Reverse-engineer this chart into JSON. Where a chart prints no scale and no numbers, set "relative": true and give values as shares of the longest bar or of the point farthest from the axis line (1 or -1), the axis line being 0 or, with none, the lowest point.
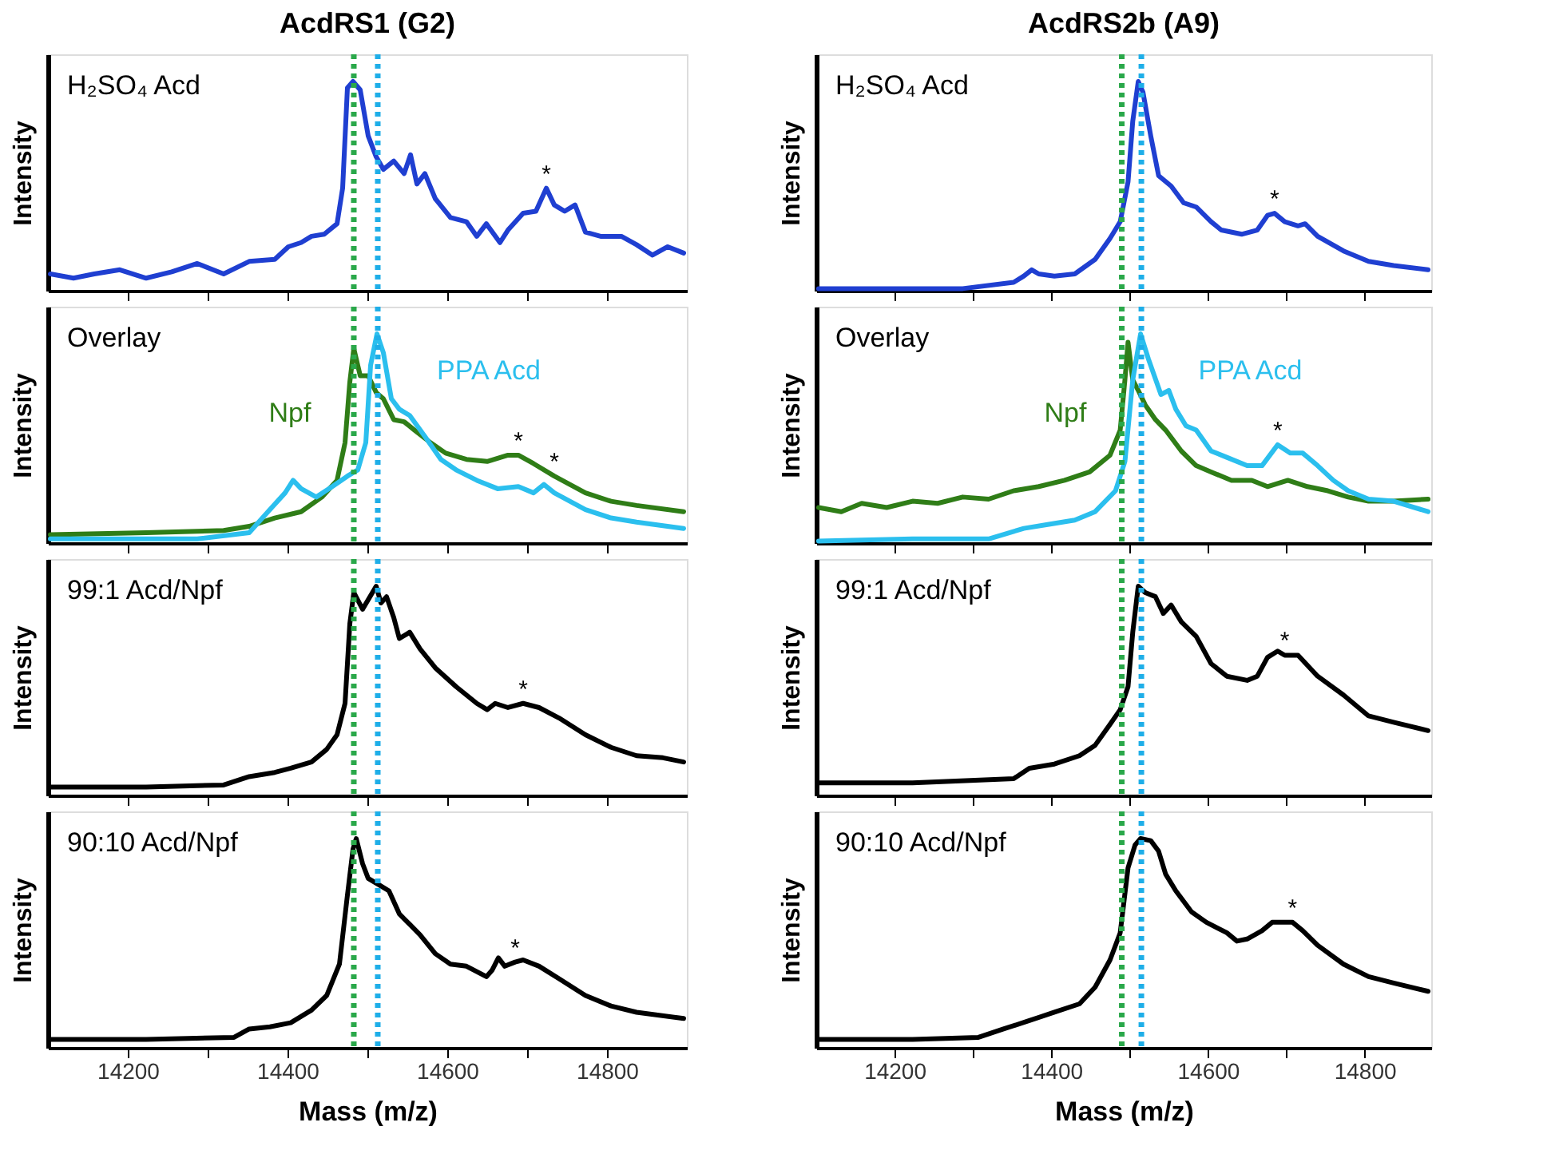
{
  "chart_data": [
    {
      "type": "line",
      "title": "AcdRS1 (G2)",
      "ylabel": "Intensity",
      "relative": true,
      "tick_labels": false,
      "xlim": [
        14100,
        14900
      ],
      "xticks": [
        {
          "value": 14200,
          "label": null
        },
        {
          "value": 14300,
          "label": null
        },
        {
          "value": 14400,
          "label": null
        },
        {
          "value": 14500,
          "label": null
        },
        {
          "value": 14600,
          "label": null
        },
        {
          "value": 14700,
          "label": null
        },
        {
          "value": 14800,
          "label": null
        }
      ],
      "ref_lines": [
        {
          "axis": "x",
          "value": 14483,
          "color": "#2aa84a",
          "line_style": "dotted"
        },
        {
          "axis": "x",
          "value": 14513,
          "color": "#1eaee8",
          "line_style": "dotted"
        }
      ],
      "annotations": [
        "H₂SO₄ Acd",
        {
          "text": "*",
          "x": 14724,
          "y": 0.49
        }
      ],
      "series": [
        {
          "color": "#1f3fd1",
          "x": [
            14103,
            14132,
            14158,
            14190,
            14223,
            14255,
            14287,
            14320,
            14352,
            14384,
            14401,
            14417,
            14430,
            14446,
            14462,
            14469,
            14475,
            14482,
            14491,
            14501,
            14511,
            14520,
            14533,
            14546,
            14554,
            14562,
            14572,
            14585,
            14604,
            14624,
            14637,
            14649,
            14666,
            14676,
            14695,
            14711,
            14724,
            14734,
            14747,
            14760,
            14773,
            14792,
            14818,
            14837,
            14857,
            14876,
            14896
          ],
          "values": [
            0.08,
            0.06,
            0.08,
            0.1,
            0.06,
            0.09,
            0.13,
            0.08,
            0.14,
            0.15,
            0.21,
            0.23,
            0.26,
            0.27,
            0.32,
            0.49,
            0.97,
            1.0,
            0.96,
            0.74,
            0.64,
            0.58,
            0.62,
            0.56,
            0.65,
            0.51,
            0.56,
            0.44,
            0.35,
            0.33,
            0.26,
            0.32,
            0.23,
            0.29,
            0.37,
            0.38,
            0.49,
            0.41,
            0.38,
            0.41,
            0.28,
            0.26,
            0.26,
            0.22,
            0.17,
            0.21,
            0.18
          ]
        }
      ]
    },
    {
      "type": "line",
      "title": "AcdRS2b (A9)",
      "ylabel": "Intensity",
      "relative": true,
      "tick_labels": false,
      "xlim": [
        14100,
        14885
      ],
      "xticks": [
        {
          "value": 14200,
          "label": null
        },
        {
          "value": 14300,
          "label": null
        },
        {
          "value": 14400,
          "label": null
        },
        {
          "value": 14500,
          "label": null
        },
        {
          "value": 14600,
          "label": null
        },
        {
          "value": 14700,
          "label": null
        },
        {
          "value": 14800,
          "label": null
        }
      ],
      "ref_lines": [
        {
          "axis": "x",
          "value": 14490,
          "color": "#2aa84a",
          "line_style": "dotted"
        },
        {
          "axis": "x",
          "value": 14515,
          "color": "#1eaee8",
          "line_style": "dotted"
        }
      ],
      "annotations": [
        "H₂SO₄ Acd",
        {
          "text": "*",
          "x": 14685,
          "y": 0.37
        }
      ],
      "series": [
        {
          "color": "#1f3fd1",
          "x": [
            14103,
            14223,
            14287,
            14352,
            14365,
            14375,
            14384,
            14404,
            14430,
            14456,
            14475,
            14488,
            14498,
            14504,
            14511,
            14517,
            14527,
            14537,
            14553,
            14569,
            14585,
            14604,
            14617,
            14643,
            14663,
            14676,
            14685,
            14698,
            14715,
            14724,
            14740,
            14773,
            14805,
            14837,
            14881
          ],
          "values": [
            0.01,
            0.01,
            0.01,
            0.04,
            0.07,
            0.1,
            0.08,
            0.07,
            0.08,
            0.15,
            0.25,
            0.33,
            0.52,
            0.81,
            1.0,
            0.95,
            0.74,
            0.55,
            0.5,
            0.42,
            0.4,
            0.33,
            0.29,
            0.27,
            0.29,
            0.36,
            0.37,
            0.33,
            0.31,
            0.32,
            0.26,
            0.19,
            0.14,
            0.12,
            0.1
          ]
        }
      ]
    },
    {
      "type": "line",
      "ylabel": "Intensity",
      "relative": true,
      "tick_labels": false,
      "xlim": [
        14100,
        14900
      ],
      "xticks": [
        {
          "value": 14200,
          "label": null
        },
        {
          "value": 14300,
          "label": null
        },
        {
          "value": 14400,
          "label": null
        },
        {
          "value": 14500,
          "label": null
        },
        {
          "value": 14600,
          "label": null
        },
        {
          "value": 14700,
          "label": null
        },
        {
          "value": 14800,
          "label": null
        }
      ],
      "ref_lines": [
        {
          "axis": "x",
          "value": 14483,
          "color": "#2aa84a",
          "line_style": "dotted"
        },
        {
          "axis": "x",
          "value": 14513,
          "color": "#1eaee8",
          "line_style": "dotted"
        }
      ],
      "annotations": [
        "Overlay",
        {
          "text": "*",
          "x": 14689,
          "y": 0.42
        },
        {
          "text": "*",
          "x": 14734,
          "y": 0.32
        }
      ],
      "series": [
        {
          "name": "Npf",
          "color": "#2f7d17",
          "x": [
            14103,
            14223,
            14320,
            14352,
            14384,
            14417,
            14443,
            14462,
            14472,
            14478,
            14483,
            14491,
            14501,
            14511,
            14520,
            14533,
            14546,
            14559,
            14579,
            14598,
            14624,
            14650,
            14676,
            14689,
            14708,
            14734,
            14773,
            14805,
            14837,
            14896
          ],
          "values": [
            0.04,
            0.05,
            0.06,
            0.08,
            0.12,
            0.15,
            0.22,
            0.3,
            0.48,
            0.77,
            0.93,
            0.8,
            0.8,
            0.72,
            0.69,
            0.59,
            0.58,
            0.54,
            0.48,
            0.43,
            0.4,
            0.39,
            0.42,
            0.42,
            0.38,
            0.32,
            0.24,
            0.2,
            0.18,
            0.15
          ]
        },
        {
          "name": "PPA Acd",
          "color": "#2bbfee",
          "x": [
            14103,
            14287,
            14352,
            14378,
            14397,
            14407,
            14417,
            14436,
            14456,
            14475,
            14488,
            14498,
            14504,
            14512,
            14520,
            14530,
            14540,
            14553,
            14572,
            14592,
            14611,
            14637,
            14663,
            14689,
            14708,
            14721,
            14734,
            14773,
            14805,
            14837,
            14896
          ],
          "values": [
            0.02,
            0.02,
            0.05,
            0.16,
            0.24,
            0.3,
            0.26,
            0.22,
            0.27,
            0.32,
            0.35,
            0.48,
            0.85,
            1.0,
            0.91,
            0.69,
            0.64,
            0.61,
            0.51,
            0.4,
            0.35,
            0.3,
            0.26,
            0.27,
            0.24,
            0.28,
            0.24,
            0.16,
            0.12,
            0.1,
            0.07
          ]
        }
      ]
    },
    {
      "type": "line",
      "ylabel": "Intensity",
      "relative": true,
      "tick_labels": false,
      "xlim": [
        14100,
        14885
      ],
      "xticks": [
        {
          "value": 14200,
          "label": null
        },
        {
          "value": 14300,
          "label": null
        },
        {
          "value": 14400,
          "label": null
        },
        {
          "value": 14500,
          "label": null
        },
        {
          "value": 14600,
          "label": null
        },
        {
          "value": 14700,
          "label": null
        },
        {
          "value": 14800,
          "label": null
        }
      ],
      "ref_lines": [
        {
          "axis": "x",
          "value": 14490,
          "color": "#2aa84a",
          "line_style": "dotted"
        },
        {
          "axis": "x",
          "value": 14515,
          "color": "#1eaee8",
          "line_style": "dotted"
        }
      ],
      "annotations": [
        "Overlay",
        {
          "text": "*",
          "x": 14689,
          "y": 0.47
        }
      ],
      "series": [
        {
          "name": "Npf",
          "color": "#2f7d17",
          "x": [
            14103,
            14132,
            14158,
            14190,
            14223,
            14255,
            14287,
            14320,
            14352,
            14384,
            14417,
            14449,
            14475,
            14488,
            14494,
            14498,
            14504,
            14511,
            14520,
            14533,
            14546,
            14566,
            14585,
            14604,
            14630,
            14656,
            14676,
            14702,
            14727,
            14753,
            14779,
            14805,
            14837,
            14881
          ],
          "values": [
            0.17,
            0.15,
            0.19,
            0.17,
            0.2,
            0.19,
            0.22,
            0.21,
            0.25,
            0.27,
            0.3,
            0.34,
            0.42,
            0.54,
            0.78,
            0.96,
            0.78,
            0.73,
            0.66,
            0.59,
            0.54,
            0.44,
            0.37,
            0.34,
            0.3,
            0.3,
            0.27,
            0.3,
            0.27,
            0.25,
            0.22,
            0.2,
            0.2,
            0.21
          ]
        },
        {
          "name": "PPA Acd",
          "color": "#2bbfee",
          "x": [
            14103,
            14223,
            14320,
            14365,
            14397,
            14430,
            14456,
            14482,
            14494,
            14504,
            14514,
            14524,
            14540,
            14550,
            14559,
            14572,
            14585,
            14604,
            14624,
            14650,
            14669,
            14689,
            14705,
            14721,
            14740,
            14760,
            14779,
            14805,
            14837,
            14881
          ],
          "values": [
            0.01,
            0.02,
            0.02,
            0.07,
            0.09,
            0.11,
            0.15,
            0.25,
            0.39,
            0.78,
            1.0,
            0.88,
            0.71,
            0.73,
            0.64,
            0.56,
            0.54,
            0.44,
            0.41,
            0.37,
            0.37,
            0.47,
            0.43,
            0.43,
            0.37,
            0.3,
            0.25,
            0.21,
            0.2,
            0.15
          ]
        }
      ]
    },
    {
      "type": "line",
      "ylabel": "Intensity",
      "relative": true,
      "tick_labels": false,
      "xlim": [
        14100,
        14900
      ],
      "xticks": [
        {
          "value": 14200,
          "label": null
        },
        {
          "value": 14300,
          "label": null
        },
        {
          "value": 14400,
          "label": null
        },
        {
          "value": 14500,
          "label": null
        },
        {
          "value": 14600,
          "label": null
        },
        {
          "value": 14700,
          "label": null
        },
        {
          "value": 14800,
          "label": null
        }
      ],
      "ref_lines": [
        {
          "axis": "x",
          "value": 14483,
          "color": "#2aa84a",
          "line_style": "dotted"
        },
        {
          "axis": "x",
          "value": 14513,
          "color": "#1eaee8",
          "line_style": "dotted"
        }
      ],
      "annotations": [
        "99:1 Acd/Npf",
        {
          "text": "*",
          "x": 14695,
          "y": 0.44
        }
      ],
      "series": [
        {
          "color": "#000000",
          "x": [
            14103,
            14223,
            14320,
            14352,
            14384,
            14404,
            14430,
            14449,
            14462,
            14472,
            14478,
            14483,
            14494,
            14511,
            14517,
            14524,
            14533,
            14540,
            14553,
            14566,
            14585,
            14611,
            14637,
            14650,
            14660,
            14676,
            14695,
            14715,
            14740,
            14773,
            14805,
            14837,
            14870,
            14896
          ],
          "values": [
            0.04,
            0.04,
            0.05,
            0.09,
            0.11,
            0.13,
            0.16,
            0.22,
            0.29,
            0.44,
            0.82,
            0.97,
            0.89,
            1.0,
            0.92,
            0.95,
            0.85,
            0.75,
            0.78,
            0.7,
            0.61,
            0.52,
            0.44,
            0.41,
            0.44,
            0.42,
            0.44,
            0.42,
            0.37,
            0.29,
            0.23,
            0.19,
            0.18,
            0.16
          ]
        }
      ]
    },
    {
      "type": "line",
      "ylabel": "Intensity",
      "relative": true,
      "tick_labels": false,
      "xlim": [
        14100,
        14885
      ],
      "xticks": [
        {
          "value": 14200,
          "label": null
        },
        {
          "value": 14300,
          "label": null
        },
        {
          "value": 14400,
          "label": null
        },
        {
          "value": 14500,
          "label": null
        },
        {
          "value": 14600,
          "label": null
        },
        {
          "value": 14700,
          "label": null
        },
        {
          "value": 14800,
          "label": null
        }
      ],
      "ref_lines": [
        {
          "axis": "x",
          "value": 14490,
          "color": "#2aa84a",
          "line_style": "dotted"
        },
        {
          "axis": "x",
          "value": 14515,
          "color": "#1eaee8",
          "line_style": "dotted"
        }
      ],
      "annotations": [
        "99:1 Acd/Npf",
        {
          "text": "*",
          "x": 14698,
          "y": 0.67
        }
      ],
      "series": [
        {
          "color": "#000000",
          "x": [
            14103,
            14223,
            14352,
            14372,
            14404,
            14436,
            14456,
            14475,
            14488,
            14498,
            14504,
            14511,
            14520,
            14533,
            14543,
            14553,
            14566,
            14585,
            14604,
            14624,
            14650,
            14663,
            14676,
            14689,
            14698,
            14715,
            14740,
            14773,
            14805,
            14837,
            14881
          ],
          "values": [
            0.06,
            0.06,
            0.08,
            0.13,
            0.15,
            0.19,
            0.24,
            0.34,
            0.41,
            0.52,
            0.78,
            1.0,
            0.97,
            0.95,
            0.87,
            0.91,
            0.83,
            0.76,
            0.63,
            0.57,
            0.55,
            0.57,
            0.66,
            0.69,
            0.67,
            0.67,
            0.57,
            0.48,
            0.38,
            0.35,
            0.31
          ]
        }
      ]
    },
    {
      "type": "line",
      "xlabel": "Mass (m/z)",
      "ylabel": "Intensity",
      "relative": true,
      "tick_labels": "x",
      "xlim": [
        14100,
        14900
      ],
      "xticks": [
        14200,
        {
          "value": 14300,
          "label": null
        },
        14400,
        {
          "value": 14500,
          "label": null
        },
        14600,
        {
          "value": 14700,
          "label": null
        },
        14800
      ],
      "ref_lines": [
        {
          "axis": "x",
          "value": 14483,
          "color": "#2aa84a",
          "line_style": "dotted"
        },
        {
          "axis": "x",
          "value": 14513,
          "color": "#1eaee8",
          "line_style": "dotted"
        }
      ],
      "annotations": [
        "90:10 Acd/Npf",
        {
          "text": "*",
          "x": 14685,
          "y": 0.41
        }
      ],
      "series": [
        {
          "color": "#000000",
          "x": [
            14103,
            14223,
            14333,
            14352,
            14378,
            14404,
            14430,
            14449,
            14465,
            14475,
            14482,
            14486,
            14494,
            14501,
            14514,
            14527,
            14540,
            14553,
            14566,
            14585,
            14604,
            14624,
            14649,
            14656,
            14664,
            14672,
            14685,
            14695,
            14715,
            14740,
            14773,
            14805,
            14837,
            14896
          ],
          "values": [
            0.04,
            0.04,
            0.05,
            0.09,
            0.1,
            0.12,
            0.18,
            0.25,
            0.4,
            0.73,
            0.95,
            1.0,
            0.88,
            0.81,
            0.78,
            0.75,
            0.64,
            0.59,
            0.54,
            0.45,
            0.4,
            0.39,
            0.34,
            0.37,
            0.43,
            0.39,
            0.41,
            0.42,
            0.39,
            0.33,
            0.25,
            0.2,
            0.17,
            0.14
          ]
        }
      ]
    },
    {
      "type": "line",
      "xlabel": "Mass (m/z)",
      "ylabel": "Intensity",
      "relative": true,
      "tick_labels": "x",
      "xlim": [
        14100,
        14885
      ],
      "xticks": [
        14200,
        {
          "value": 14300,
          "label": null
        },
        14400,
        {
          "value": 14500,
          "label": null
        },
        14600,
        {
          "value": 14700,
          "label": null
        },
        14800
      ],
      "ref_lines": [
        {
          "axis": "x",
          "value": 14490,
          "color": "#2aa84a",
          "line_style": "dotted"
        },
        {
          "axis": "x",
          "value": 14515,
          "color": "#1eaee8",
          "line_style": "dotted"
        }
      ],
      "annotations": [
        "90:10 Acd/Npf",
        {
          "text": "*",
          "x": 14708,
          "y": 0.6
        }
      ],
      "series": [
        {
          "color": "#000000",
          "x": [
            14103,
            14223,
            14307,
            14339,
            14372,
            14404,
            14436,
            14456,
            14475,
            14488,
            14498,
            14507,
            14514,
            14527,
            14537,
            14546,
            14559,
            14579,
            14598,
            14624,
            14637,
            14650,
            14669,
            14682,
            14695,
            14708,
            14721,
            14740,
            14773,
            14805,
            14837,
            14881
          ],
          "values": [
            0.04,
            0.04,
            0.05,
            0.09,
            0.13,
            0.17,
            0.21,
            0.29,
            0.42,
            0.55,
            0.86,
            0.97,
            1.0,
            0.99,
            0.94,
            0.83,
            0.75,
            0.65,
            0.6,
            0.55,
            0.51,
            0.52,
            0.56,
            0.6,
            0.6,
            0.6,
            0.56,
            0.49,
            0.4,
            0.34,
            0.31,
            0.27
          ]
        }
      ]
    }
  ]
}
